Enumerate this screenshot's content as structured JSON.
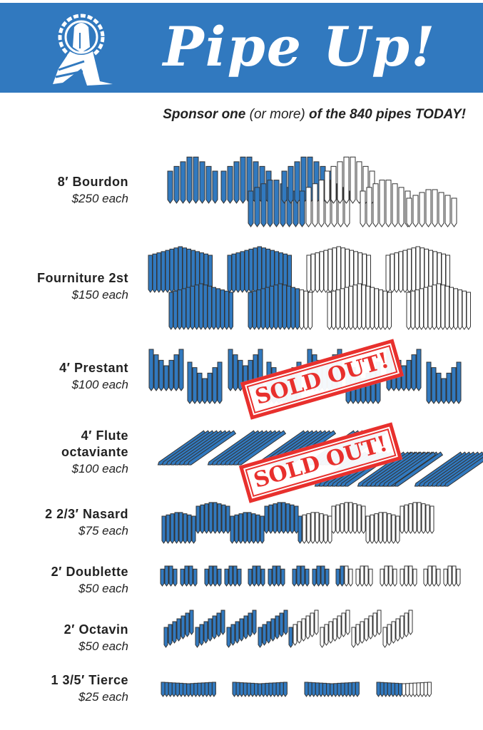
{
  "header": {
    "title": "Pipe Up!",
    "logo": "haloed-figure-logo",
    "background_color": "#3179bf"
  },
  "tagline": {
    "part1": "Sponsor one",
    "part2": "(or more)",
    "part3": "of the 840 pipes TODAY!"
  },
  "colors": {
    "sponsored": "#3179bf",
    "available": "#ffffff",
    "stamp": "#e8302d"
  },
  "ranks": [
    {
      "name": "8′ Bourdon",
      "price": "$250 each",
      "sponsored_fraction": 0.52,
      "sold_out": false
    },
    {
      "name": "Fourniture 2st",
      "price": "$150 each",
      "sponsored_fraction": 0.475,
      "sold_out": false
    },
    {
      "name": "4′ Prestant",
      "price": "$100 each",
      "sponsored_fraction": 1.0,
      "sold_out": true,
      "stamp": "SOLD OUT!"
    },
    {
      "name": "4′ Flute octaviante",
      "name_line1": "4′ Flute",
      "name_line2": "octaviante",
      "price": "$100 each",
      "sponsored_fraction": 1.0,
      "sold_out": true,
      "stamp": "SOLD OUT!"
    },
    {
      "name": "2 2/3′ Nasard",
      "price": "$75 each",
      "sponsored_fraction": 0.516,
      "sold_out": false
    },
    {
      "name": "2′ Doublette",
      "price": "$50 each",
      "sponsored_fraction": 0.607,
      "sold_out": false
    },
    {
      "name": "2′ Octavin",
      "price": "$50 each",
      "sponsored_fraction": 0.518,
      "sold_out": false
    },
    {
      "name": "1 3/5′ Tierce",
      "price": "$25 each",
      "sponsored_fraction": 0.867,
      "sold_out": false
    }
  ]
}
